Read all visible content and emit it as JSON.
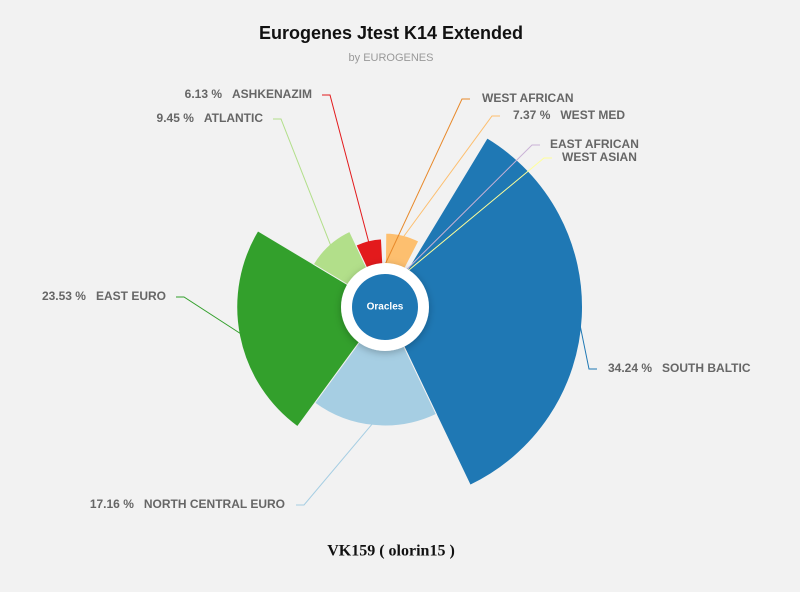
{
  "chart_data": {
    "type": "variable-radius-pie",
    "title": "Eurogenes Jtest K14 Extended",
    "subtitle": "by EUROGENES",
    "center_label": "Oracles",
    "footer": "VK159 ( olorin15 )",
    "categories": [
      "WEST AFRICAN",
      "WEST MED",
      "EAST AFRICAN",
      "WEST ASIAN",
      "SOUTH BALTIC",
      "NORTH CENTRAL EURO",
      "EAST EURO",
      "ATLANTIC",
      "ASHKENAZIM"
    ],
    "values": [
      1.0,
      7.37,
      0.6,
      0.52,
      34.24,
      17.16,
      23.53,
      9.45,
      6.13
    ],
    "value_labels": [
      null,
      "7.37 %",
      null,
      null,
      "34.24 %",
      "17.16 %",
      "23.53 %",
      "9.45 %",
      "6.13 %"
    ],
    "colors": [
      "#e8892a",
      "#fdbf6f",
      "#cab2d6",
      "#ffff99",
      "#1f78b4",
      "#a6cee3",
      "#33a02c",
      "#b2df8a",
      "#e31a1c"
    ]
  }
}
